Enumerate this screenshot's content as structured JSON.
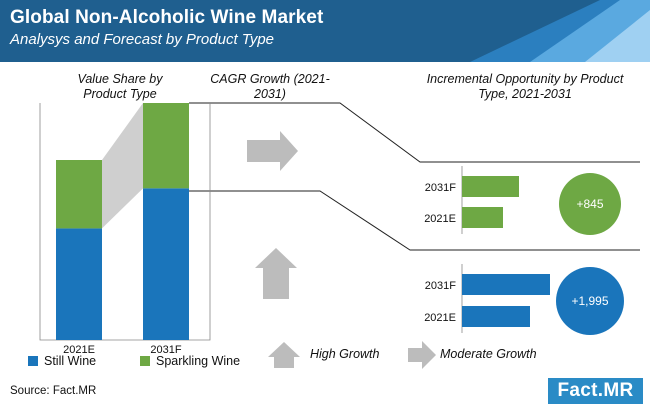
{
  "header": {
    "title": "Global Non-Alcoholic Wine Market",
    "subtitle": "Analysys and Forecast by Product Type"
  },
  "sections": {
    "value_share": "Value Share by Product Type",
    "cagr": "CAGR Growth (2021-2031)",
    "incremental": "Incremental Opportunity by Product Type, 2021-2031"
  },
  "legend": {
    "still": "Still Wine",
    "sparkling": "Sparkling Wine"
  },
  "growth_legend": {
    "high": "High Growth",
    "moderate": "Moderate Growth"
  },
  "footer": {
    "source": "Source: Fact.MR",
    "logo": "Fact.MR"
  },
  "colors": {
    "header": "#1f5f8f",
    "still": "#1a75bb",
    "sparkling": "#6ea844",
    "arrow": "#bcbcbc"
  },
  "chart_data": [
    {
      "type": "bar",
      "title": "Value Share by Product Type",
      "stacked": true,
      "normalized": true,
      "categories": [
        "2021E",
        "2031F"
      ],
      "series": [
        {
          "name": "Still Wine",
          "values": [
            0.62,
            0.64
          ]
        },
        {
          "name": "Sparkling Wine",
          "values": [
            0.38,
            0.36
          ]
        }
      ]
    },
    {
      "type": "bar",
      "orientation": "horizontal",
      "title": "Incremental Opportunity by Product Type, 2021-2031",
      "categories": [
        "2031F",
        "2021E"
      ],
      "series": [
        {
          "name": "Sparkling Wine",
          "values": [
            57,
            41
          ]
        },
        {
          "name": "Still Wine",
          "values": [
            88,
            68
          ]
        }
      ],
      "annotations": [
        {
          "series": "Sparkling Wine",
          "text": "+845",
          "growth": "Moderate Growth"
        },
        {
          "series": "Still Wine",
          "text": "+1,995",
          "growth": "High Growth"
        }
      ]
    }
  ]
}
